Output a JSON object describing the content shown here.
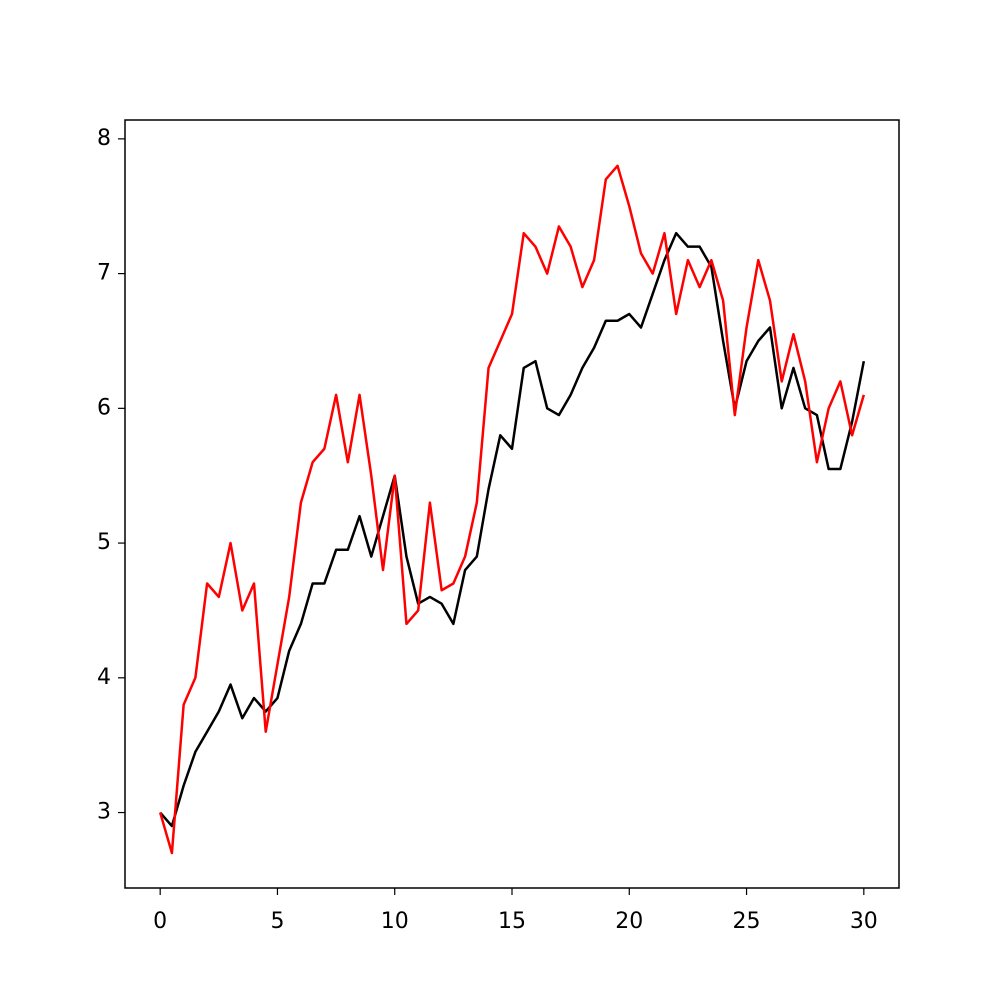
{
  "chart_data": {
    "type": "line",
    "x": [
      0,
      0.5,
      1,
      1.5,
      2,
      2.5,
      3,
      3.5,
      4,
      4.5,
      5,
      5.5,
      6,
      6.5,
      7,
      7.5,
      8,
      8.5,
      9,
      9.5,
      10,
      10.5,
      11,
      11.5,
      12,
      12.5,
      13,
      13.5,
      14,
      14.5,
      15,
      15.5,
      16,
      16.5,
      17,
      17.5,
      18,
      18.5,
      19,
      19.5,
      20,
      20.5,
      21,
      21.5,
      22,
      22.5,
      23,
      23.5,
      24,
      24.5,
      25,
      25.5,
      26,
      26.5,
      27,
      27.5,
      28,
      28.5,
      29,
      29.5,
      30
    ],
    "series": [
      {
        "color": "#000000",
        "values": [
          3.0,
          2.9,
          3.2,
          3.45,
          3.6,
          3.75,
          3.95,
          3.7,
          3.85,
          3.75,
          3.85,
          4.2,
          4.4,
          4.7,
          4.7,
          4.95,
          4.95,
          5.2,
          4.9,
          5.2,
          5.5,
          4.9,
          4.55,
          4.6,
          4.55,
          4.4,
          4.8,
          4.9,
          5.4,
          5.8,
          5.7,
          6.3,
          6.35,
          6.0,
          5.95,
          6.1,
          6.3,
          6.45,
          6.65,
          6.65,
          6.7,
          6.6,
          6.85,
          7.1,
          7.3,
          7.2,
          7.2,
          7.05,
          6.5,
          6.0,
          6.35,
          6.5,
          6.6,
          6.0,
          6.3,
          6.0,
          5.95,
          5.55,
          5.55,
          5.9,
          6.35
        ]
      },
      {
        "color": "#ff0000",
        "values": [
          3.0,
          2.7,
          3.8,
          4.0,
          4.7,
          4.6,
          5.0,
          4.5,
          4.7,
          3.6,
          4.1,
          4.6,
          5.3,
          5.6,
          5.7,
          6.1,
          5.6,
          6.1,
          5.5,
          4.8,
          5.5,
          4.4,
          4.5,
          5.3,
          4.65,
          4.7,
          4.9,
          5.3,
          6.3,
          6.5,
          6.7,
          7.3,
          7.2,
          7.0,
          7.35,
          7.2,
          6.9,
          7.1,
          7.7,
          7.8,
          7.5,
          7.15,
          7.0,
          7.3,
          6.7,
          7.1,
          6.9,
          7.1,
          6.8,
          5.95,
          6.6,
          7.1,
          6.8,
          6.2,
          6.55,
          6.2,
          5.6,
          6.0,
          6.2,
          5.8,
          6.1
        ]
      }
    ],
    "xlim": [
      -1.5,
      31.5
    ],
    "xticks": [
      0,
      5,
      10,
      15,
      20,
      25,
      30
    ],
    "ylim": [
      2.44,
      8.14
    ],
    "yticks": [
      3,
      4,
      5,
      6,
      7,
      8
    ],
    "grid": false
  }
}
